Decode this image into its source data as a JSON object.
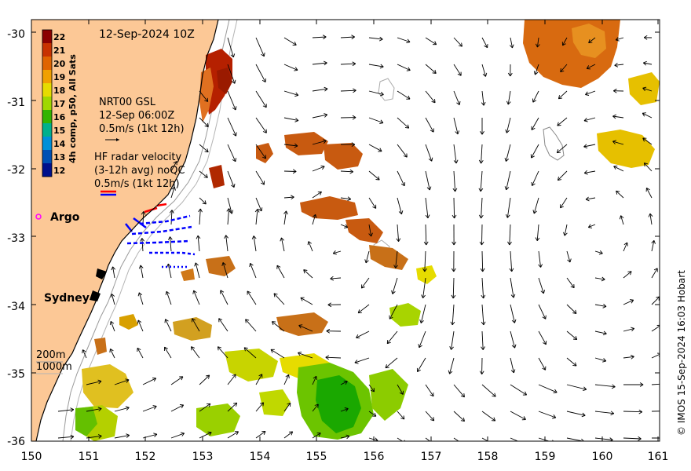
{
  "title": "12-Sep-2024 10Z",
  "axes": {
    "x_ticks": [
      "150",
      "151",
      "152",
      "153",
      "154",
      "155",
      "156",
      "157",
      "158",
      "159",
      "160",
      "161"
    ],
    "y_ticks": [
      "-30",
      "-31",
      "-32",
      "-33",
      "-34",
      "-35",
      "-36"
    ],
    "lon_range": [
      150,
      161
    ],
    "lat_range": [
      -36,
      -29.85
    ]
  },
  "colorbar": {
    "label": "4h comp, p50, All Sats",
    "ticks": [
      "22",
      "21",
      "20",
      "19",
      "18",
      "17",
      "16",
      "15",
      "14",
      "13",
      "12"
    ],
    "colors": [
      "#8b0000",
      "#c83200",
      "#e06400",
      "#f0a000",
      "#e6dc00",
      "#a0d800",
      "#32b400",
      "#00b08c",
      "#0090d8",
      "#0050b4",
      "#00108c"
    ]
  },
  "legend": {
    "gsl_line1": "NRT00 GSL",
    "gsl_line2": "12-Sep 06:00Z",
    "gsl_line3": "0.5m/s (1kt 12h)",
    "hf_line1": "HF radar velocity",
    "hf_line2": "(3-12h avg) noQC",
    "hf_line3": "0.5m/s (1kt 12h)",
    "argo_label": "Argo",
    "depth_200": "200m",
    "depth_1000": "1000m"
  },
  "places": {
    "sydney": "Sydney"
  },
  "credit": "© IMOS 15-Sep-2024 16:03 Hobart",
  "colors": {
    "land": "#fcc896",
    "argo": "#ff00ff",
    "hf_red": "#ff0000",
    "hf_blue": "#0000ff"
  }
}
